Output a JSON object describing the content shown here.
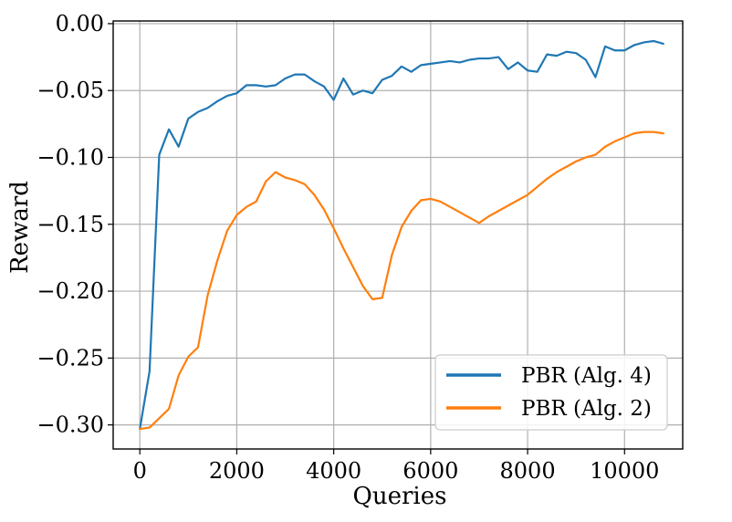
{
  "chart_data": {
    "type": "line",
    "title": "",
    "xlabel": "Queries",
    "ylabel": "Reward",
    "xlim": [
      -550,
      11200
    ],
    "ylim": [
      -0.318,
      0.002
    ],
    "xticks": [
      0,
      2000,
      4000,
      6000,
      8000,
      10000
    ],
    "yticks": [
      0.0,
      -0.05,
      -0.1,
      -0.15,
      -0.2,
      -0.25,
      -0.3
    ],
    "xtick_labels": [
      "0",
      "2000",
      "4000",
      "6000",
      "8000",
      "10000"
    ],
    "ytick_labels": [
      "0.00",
      "−0.05",
      "−0.10",
      "−0.15",
      "−0.20",
      "−0.25",
      "−0.30"
    ],
    "grid": true,
    "legend_position": "lower-right",
    "series": [
      {
        "name": "PBR (Alg. 4)",
        "color": "#1f77b4",
        "x": [
          0,
          200,
          400,
          600,
          800,
          1000,
          1200,
          1400,
          1600,
          1800,
          2000,
          2200,
          2400,
          2600,
          2800,
          3000,
          3200,
          3400,
          3600,
          3800,
          4000,
          4200,
          4400,
          4600,
          4800,
          5000,
          5200,
          5400,
          5600,
          5800,
          6000,
          6200,
          6400,
          6600,
          6800,
          7000,
          7200,
          7400,
          7600,
          7800,
          8000,
          8200,
          8400,
          8600,
          8800,
          9000,
          9200,
          9400,
          9600,
          9800,
          10000,
          10200,
          10400,
          10600,
          10800
        ],
        "values": [
          -0.303,
          -0.26,
          -0.098,
          -0.079,
          -0.092,
          -0.071,
          -0.066,
          -0.063,
          -0.058,
          -0.054,
          -0.052,
          -0.046,
          -0.046,
          -0.047,
          -0.046,
          -0.041,
          -0.038,
          -0.038,
          -0.043,
          -0.047,
          -0.057,
          -0.041,
          -0.053,
          -0.05,
          -0.052,
          -0.042,
          -0.039,
          -0.032,
          -0.036,
          -0.031,
          -0.03,
          -0.029,
          -0.028,
          -0.029,
          -0.027,
          -0.026,
          -0.026,
          -0.025,
          -0.034,
          -0.029,
          -0.035,
          -0.036,
          -0.023,
          -0.024,
          -0.021,
          -0.022,
          -0.027,
          -0.04,
          -0.017,
          -0.02,
          -0.02,
          -0.016,
          -0.014,
          -0.013,
          -0.015
        ]
      },
      {
        "name": "PBR (Alg. 2)",
        "color": "#ff7f0e",
        "x": [
          0,
          200,
          400,
          600,
          800,
          1000,
          1200,
          1400,
          1600,
          1800,
          2000,
          2200,
          2400,
          2600,
          2800,
          3000,
          3200,
          3400,
          3600,
          3800,
          4000,
          4200,
          4400,
          4600,
          4800,
          5000,
          5200,
          5400,
          5600,
          5800,
          6000,
          6200,
          6400,
          6600,
          6800,
          7000,
          7200,
          7400,
          7600,
          7800,
          8000,
          8200,
          8400,
          8600,
          8800,
          9000,
          9200,
          9400,
          9600,
          9800,
          10000,
          10200,
          10400,
          10600,
          10800
        ],
        "values": [
          -0.303,
          -0.302,
          -0.295,
          -0.288,
          -0.263,
          -0.249,
          -0.242,
          -0.203,
          -0.177,
          -0.155,
          -0.143,
          -0.137,
          -0.133,
          -0.118,
          -0.111,
          -0.115,
          -0.117,
          -0.12,
          -0.128,
          -0.139,
          -0.153,
          -0.168,
          -0.182,
          -0.196,
          -0.206,
          -0.205,
          -0.173,
          -0.152,
          -0.14,
          -0.132,
          -0.131,
          -0.133,
          -0.137,
          -0.141,
          -0.145,
          -0.149,
          -0.144,
          -0.14,
          -0.136,
          -0.132,
          -0.128,
          -0.122,
          -0.116,
          -0.111,
          -0.107,
          -0.103,
          -0.1,
          -0.098,
          -0.092,
          -0.088,
          -0.085,
          -0.082,
          -0.081,
          -0.081,
          -0.082
        ]
      }
    ]
  }
}
